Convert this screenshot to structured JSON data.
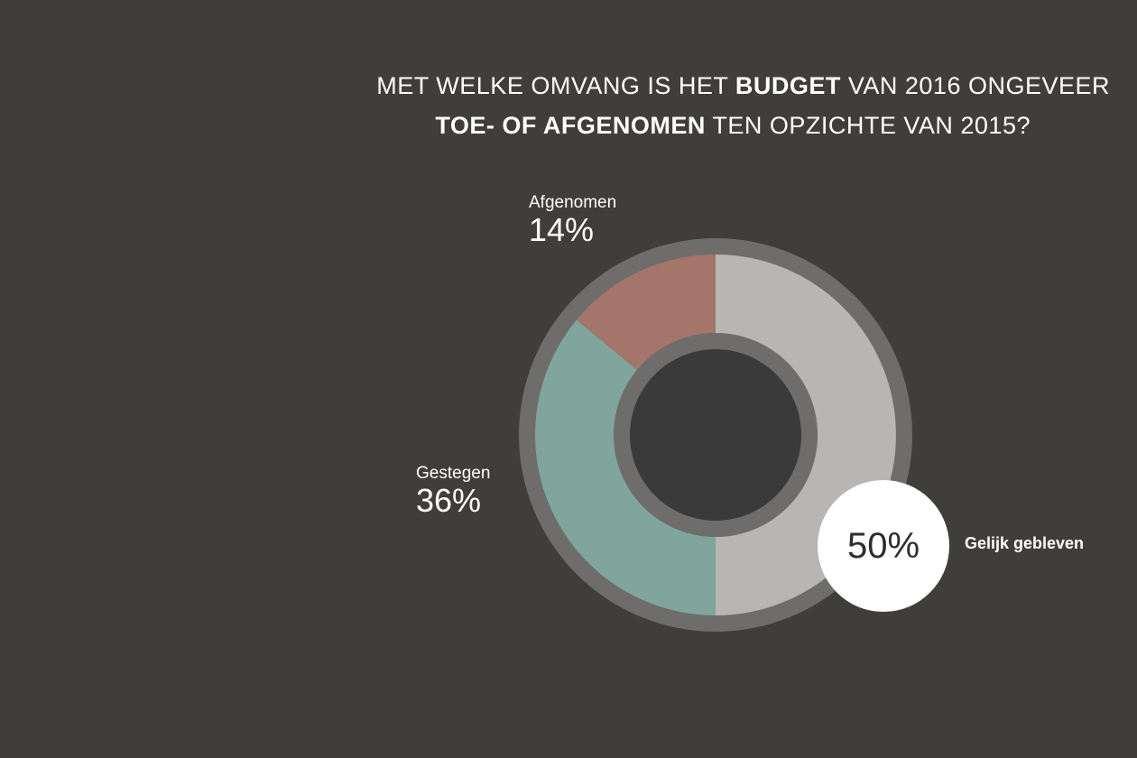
{
  "title": {
    "line1_pre": "MET WELKE OMVANG IS HET ",
    "line1_bold": "BUDGET",
    "line1_post": " VAN 2016 ONGEVEER",
    "line2_bold": "TOE- OF AFGENOMEN",
    "line2_post": " TEN OPZICHTE VAN 2015?"
  },
  "chart_data": {
    "type": "pie",
    "variant": "donut",
    "title": "MET WELKE OMVANG IS HET BUDGET VAN 2016 ONGEVEER TOE- OF AFGENOMEN TEN OPZICHTE VAN 2015?",
    "slices": [
      {
        "label": "Gelijk gebleven",
        "value": 50,
        "display": "50%",
        "color": "#b7b6b4"
      },
      {
        "label": "Gestegen",
        "value": 36,
        "display": "36%",
        "color": "#7fa59d"
      },
      {
        "label": "Afgenomen",
        "value": 14,
        "display": "14%",
        "color": "#a3756b"
      }
    ],
    "colors": {
      "background": "#403e3a",
      "outer_ring": "#6e6d6b",
      "center": "#3a3a3a",
      "inner_ring": "#6e6d6b",
      "badge": "#ffffff"
    }
  }
}
